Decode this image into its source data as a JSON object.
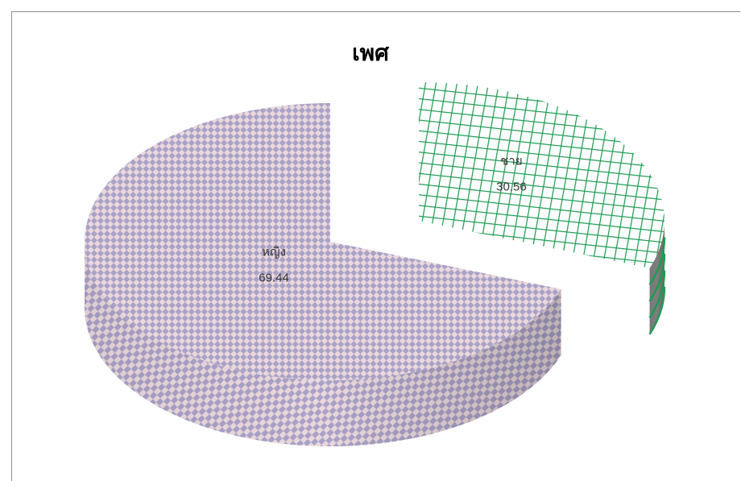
{
  "chart_data": {
    "type": "pie",
    "style": "3d-exploded",
    "title": "เพศ",
    "slices": [
      {
        "label": "หญิง",
        "value": 69.44,
        "pattern": "diamond-check",
        "colors": [
          "#ead8dc",
          "#a9a2c8"
        ]
      },
      {
        "label": "ชาย",
        "value": 30.56,
        "pattern": "grid",
        "colors": [
          "#ffffff",
          "#1e9b52"
        ]
      }
    ],
    "legend": "none",
    "data_labels": true
  }
}
